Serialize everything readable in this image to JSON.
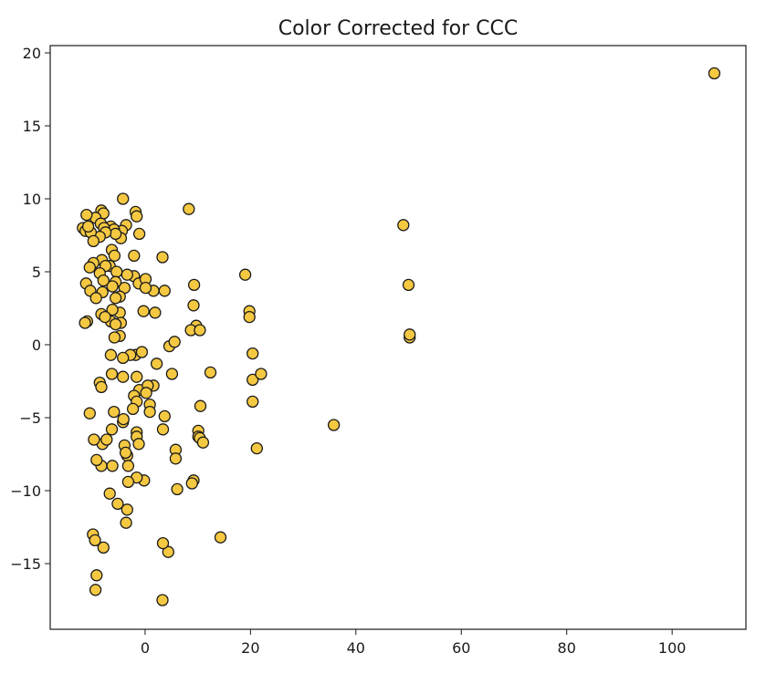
{
  "chart_data": {
    "type": "scatter",
    "title": "Color Corrected for CCC",
    "xlabel": "",
    "ylabel": "",
    "xlim": [
      -18,
      114
    ],
    "ylim": [
      -19.5,
      20.5
    ],
    "x_ticks": [
      0,
      20,
      40,
      60,
      80,
      100
    ],
    "y_ticks": [
      -15,
      -10,
      -5,
      0,
      5,
      10,
      15,
      20
    ],
    "x_tick_labels": [
      "0",
      "20",
      "40",
      "60",
      "80",
      "100"
    ],
    "y_tick_labels": [
      "−15",
      "−10",
      "−5",
      "0",
      "5",
      "10",
      "15",
      "20"
    ],
    "grid": false,
    "marker_fill": "#f5c842",
    "marker_edge": "#1a1a1a",
    "series": [
      {
        "x": [
          108,
          49,
          50,
          50.2,
          50.2,
          35.8,
          19,
          19.8,
          19.8,
          20.4,
          20.4,
          22,
          20.4,
          21.2,
          8.3,
          9.3,
          9.2,
          9.7,
          8.7,
          10.4,
          10.5,
          12.4,
          10.1,
          10.1,
          10.4,
          11,
          9.2,
          8.9,
          14.3,
          3.3,
          1.6,
          3.7,
          1.9,
          4.6,
          5.6,
          5.1,
          2.2,
          1.6,
          3.7,
          3.4,
          5.8,
          5.8,
          6.1,
          4.4,
          3.3,
          -1.8,
          -1.6,
          -1.1,
          -2.1,
          -2.1,
          -1.2,
          0.1,
          0.1,
          -0.3,
          -1.8,
          -2.8,
          -1.6,
          -1.1,
          0.5,
          0.2,
          -0.6,
          -2.1,
          -1.6,
          -2.3,
          -1.6,
          -1.6,
          -1.2,
          0.9,
          0.9,
          -3.4,
          -0.2,
          -1.6,
          -3.2,
          -3.2,
          3.4,
          -4.2,
          -3.6,
          -4.4,
          -4.6,
          -3.4,
          -3.9,
          -4.8,
          -4.8,
          -4.6,
          -4.8,
          -4.2,
          -4.2,
          -4.2,
          -4.1,
          -3.9,
          -3.7,
          -3.4,
          -3.6,
          -6.5,
          -5.9,
          -5.6,
          -6.3,
          -5.8,
          -6.7,
          -5.4,
          -5.6,
          -6.2,
          -5.6,
          -6.2,
          -6.5,
          -5.6,
          -5.8,
          -6.5,
          -6.3,
          -5.9,
          -6.3,
          -6.2,
          -6.7,
          -5.2,
          -8.3,
          -7.9,
          -9.4,
          -8.4,
          -7.8,
          -7.5,
          -8.6,
          -8.2,
          -7.5,
          -8.6,
          -7.9,
          -8.1,
          -8.3,
          -7.6,
          -8.6,
          -8.3,
          -8.1,
          -7.3,
          -8.3,
          -7.9,
          -11.8,
          -11.3,
          -10.3,
          -11.1,
          -10.8,
          -9.8,
          -9.8,
          -10.5,
          -11.2,
          -10.4,
          -9.3,
          -11,
          -11.4,
          -10.5,
          -9.7,
          -9.2,
          -9.9,
          -9.4,
          -9.2,
          -9.5
        ],
        "y": [
          18.6,
          8.2,
          4.1,
          0.5,
          0.7,
          -5.5,
          4.8,
          2.3,
          1.9,
          -0.6,
          -2.4,
          -2,
          -3.9,
          -7.1,
          9.3,
          4.1,
          2.7,
          1.3,
          1,
          1,
          -4.2,
          -1.9,
          -5.9,
          -6.3,
          -6.4,
          -6.7,
          -9.3,
          -9.5,
          -13.2,
          6,
          3.7,
          3.7,
          2.2,
          -0.1,
          0.2,
          -2,
          -1.3,
          -2.8,
          -4.9,
          -5.8,
          -7.2,
          -7.8,
          -9.9,
          -14.2,
          -17.5,
          9.1,
          8.8,
          7.6,
          6.1,
          4.7,
          4.2,
          4.5,
          3.9,
          2.3,
          -0.7,
          -0.7,
          -2.2,
          -3.1,
          -2.8,
          -3.3,
          -0.5,
          -3.5,
          -3.9,
          -4.4,
          -6,
          -6.3,
          -6.8,
          -4.1,
          -4.6,
          -7.6,
          -9.3,
          -9.1,
          -9.4,
          -8.3,
          -13.6,
          10,
          8.2,
          7.8,
          7.3,
          4.8,
          3.9,
          3.3,
          2.2,
          1.5,
          0.6,
          -0.9,
          -2.2,
          -5.3,
          -5.1,
          -6.9,
          -7.4,
          -11.3,
          -12.2,
          8.1,
          7.9,
          7.6,
          6.5,
          6.1,
          5.4,
          5,
          4.3,
          4,
          3.2,
          2.4,
          1.6,
          1.4,
          0.5,
          -0.7,
          -2,
          -4.6,
          -5.8,
          -8.3,
          -10.2,
          -10.9,
          9.2,
          9,
          8.7,
          8.3,
          8,
          7.7,
          7.4,
          5.8,
          5.4,
          4.9,
          4.4,
          3.6,
          2.1,
          1.9,
          -2.6,
          -2.9,
          -6.8,
          -6.5,
          -8.3,
          -13.9,
          8,
          7.8,
          7.7,
          8.9,
          8.1,
          7.1,
          5.6,
          5.3,
          4.2,
          3.7,
          3.2,
          1.6,
          1.5,
          -4.7,
          -6.5,
          -7.9,
          -13,
          -16.8,
          -15.8,
          -13.4
        ]
      }
    ]
  }
}
